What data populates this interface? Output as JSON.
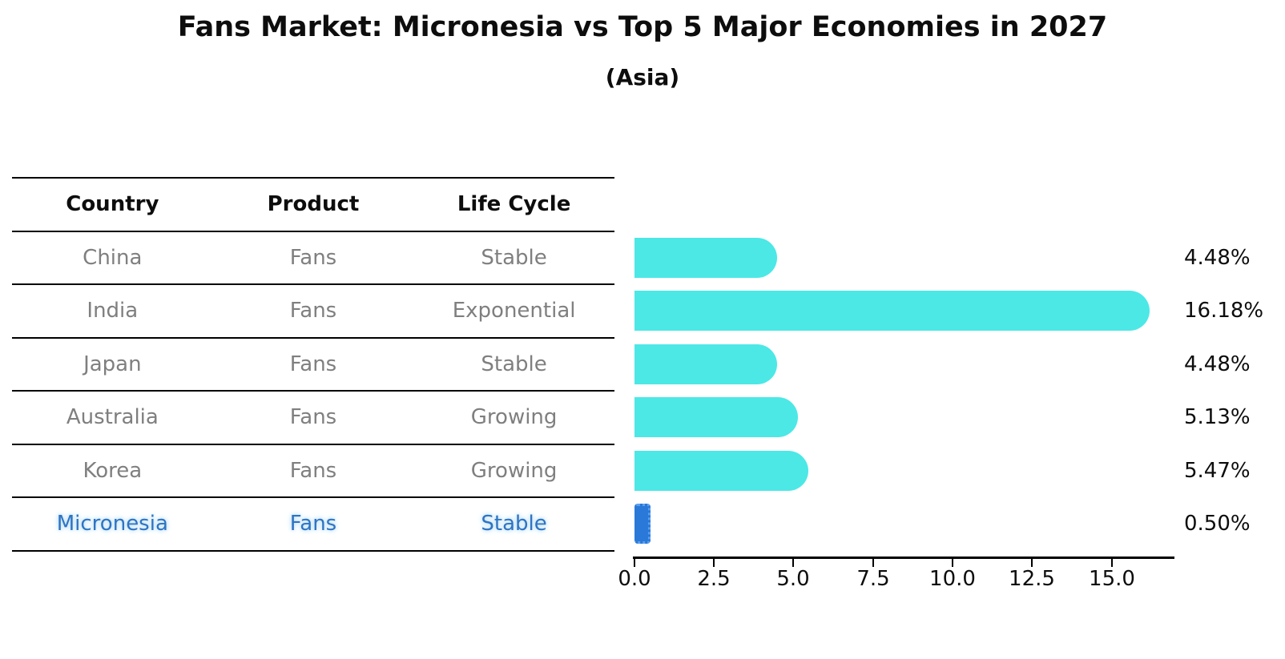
{
  "title": "Fans Market: Micronesia vs Top 5 Major Economies in 2027",
  "subtitle": "(Asia)",
  "table": {
    "headers": [
      "Country",
      "Product",
      "Life Cycle"
    ],
    "rows": [
      {
        "country": "China",
        "product": "Fans",
        "life_cycle": "Stable",
        "highlight": false
      },
      {
        "country": "India",
        "product": "Fans",
        "life_cycle": "Exponential",
        "highlight": false
      },
      {
        "country": "Japan",
        "product": "Fans",
        "life_cycle": "Stable",
        "highlight": false
      },
      {
        "country": "Australia",
        "product": "Fans",
        "life_cycle": "Growing",
        "highlight": false
      },
      {
        "country": "Korea",
        "product": "Fans",
        "life_cycle": "Growing",
        "highlight": false
      },
      {
        "country": "Micronesia",
        "product": "Fans",
        "life_cycle": "Stable",
        "highlight": true
      }
    ]
  },
  "chart_data": {
    "type": "bar",
    "orientation": "horizontal",
    "title": "Fans Market: Micronesia vs Top 5 Major Economies in 2027",
    "subtitle": "(Asia)",
    "categories": [
      "China",
      "India",
      "Japan",
      "Australia",
      "Korea",
      "Micronesia"
    ],
    "values": [
      4.48,
      16.18,
      4.48,
      5.13,
      5.47,
      0.5
    ],
    "value_labels": [
      "4.48%",
      "16.18%",
      "4.48%",
      "5.13%",
      "5.47%",
      "0.50%"
    ],
    "x_tick_labels": [
      "0.0",
      "2.5",
      "5.0",
      "7.5",
      "10.0",
      "12.5",
      "15.0"
    ],
    "x_ticks": [
      0,
      2.5,
      5,
      7.5,
      10,
      12.5,
      15
    ],
    "xlim": [
      0,
      17
    ],
    "grid": false,
    "legend": false,
    "bar_color": "#4be8e6",
    "highlight_bar_color": "#2a79d8",
    "highlight_text_color": "#2e74c2",
    "highlighted_category": "Micronesia",
    "highlight_index": 5
  }
}
